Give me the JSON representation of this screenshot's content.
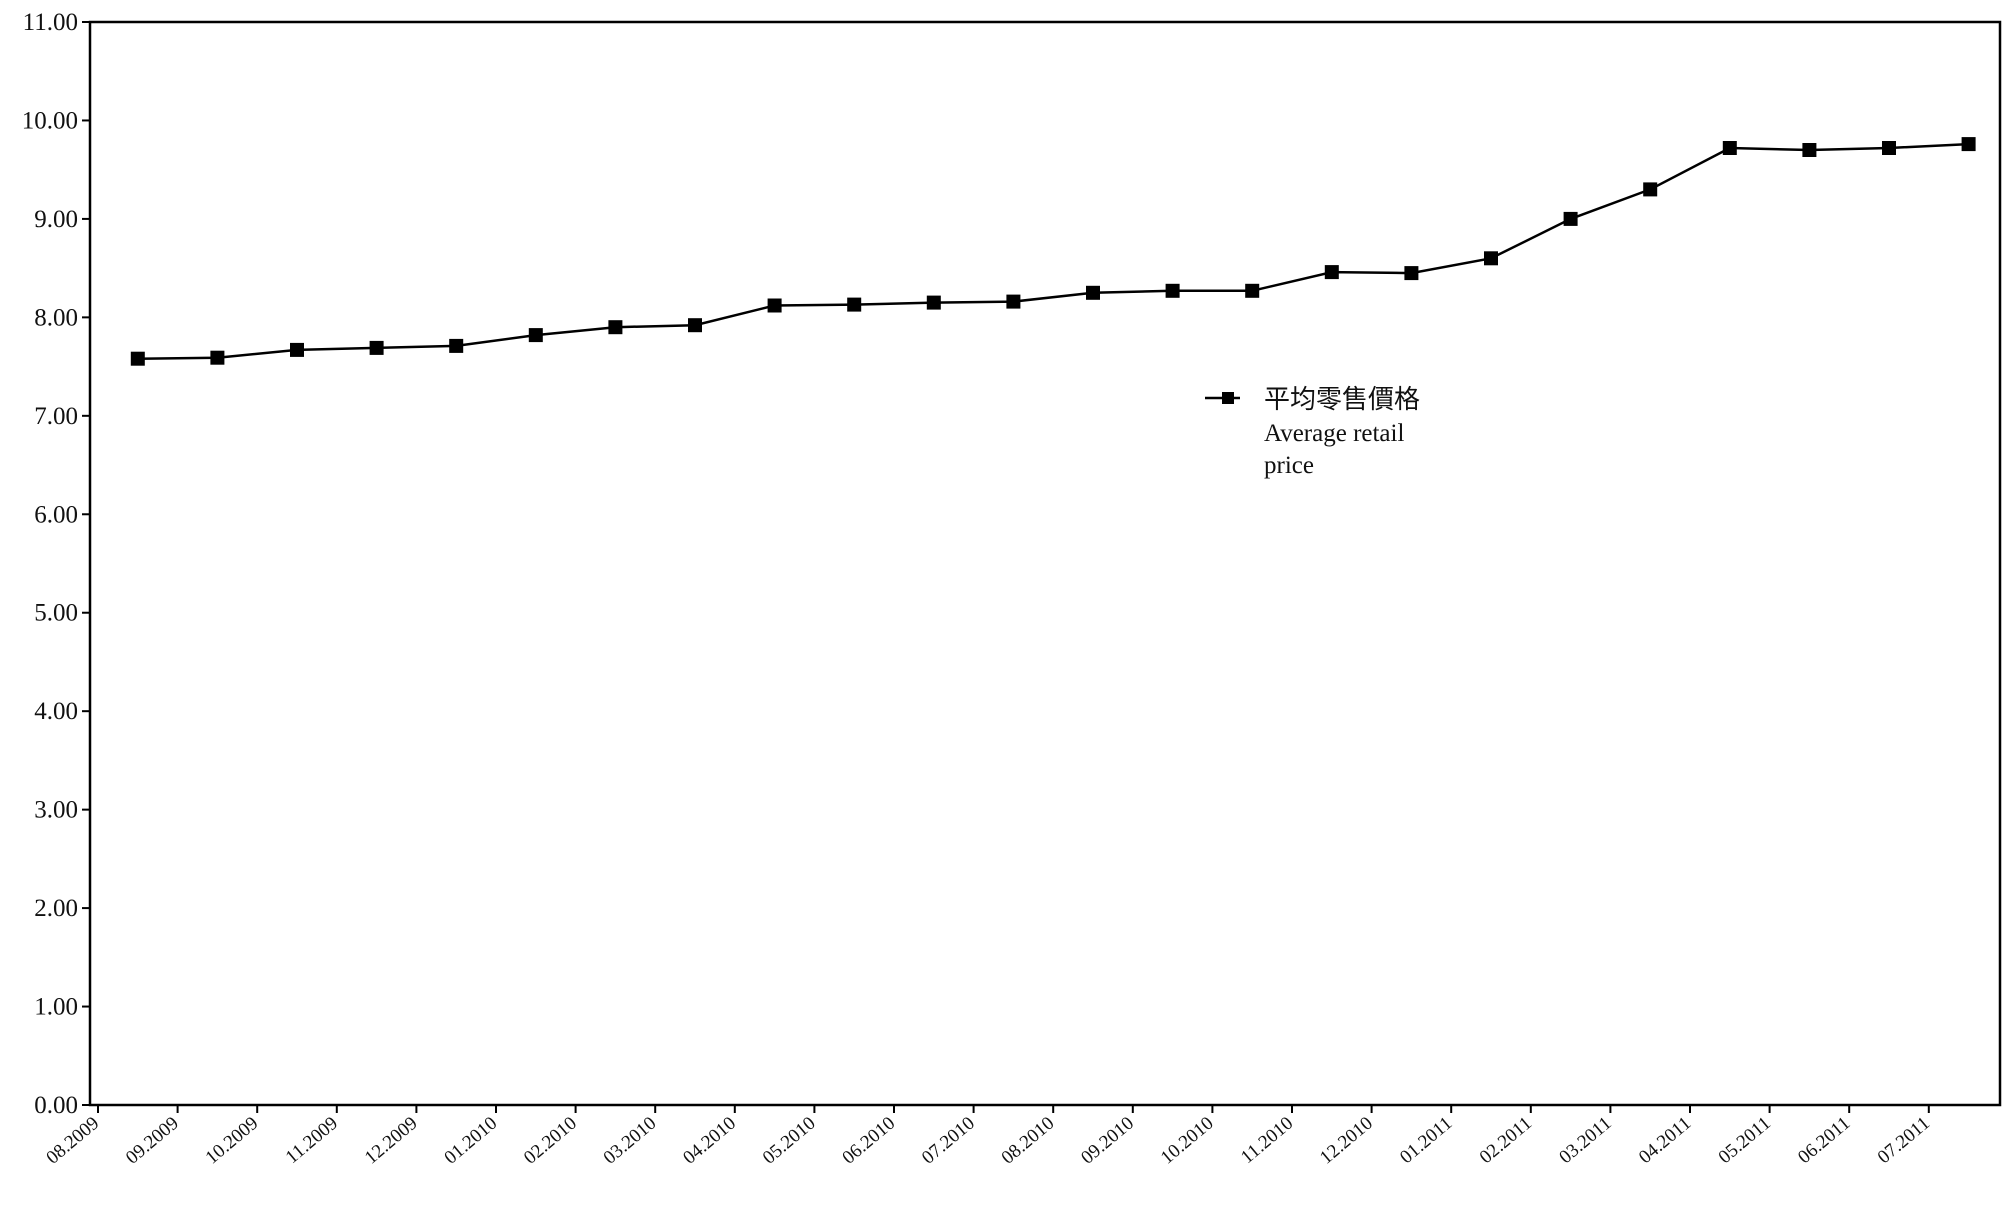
{
  "chart_data": {
    "type": "line",
    "title": "",
    "xlabel": "",
    "ylabel": "",
    "ylim": [
      0,
      11
    ],
    "yticks": [
      "0.00",
      "1.00",
      "2.00",
      "3.00",
      "4.00",
      "5.00",
      "6.00",
      "7.00",
      "8.00",
      "9.00",
      "10.00",
      "11.00"
    ],
    "grid": false,
    "legend_position": "center-right",
    "categories": [
      "08.2009",
      "09.2009",
      "10.2009",
      "11.2009",
      "12.2009",
      "01.2010",
      "02.2010",
      "03.2010",
      "04.2010",
      "05.2010",
      "06.2010",
      "07.2010",
      "08.2010",
      "09.2010",
      "10.2010",
      "11.2010",
      "12.2010",
      "01.2011",
      "02.2011",
      "03.2011",
      "04.2011",
      "05.2011",
      "06.2011",
      "07.2011"
    ],
    "series": [
      {
        "name_zh": "平均零售價格",
        "name_en_line1": "Average retail",
        "name_en_line2": "price",
        "color": "#000000",
        "marker": "square",
        "values": [
          7.58,
          7.59,
          7.67,
          7.69,
          7.71,
          7.82,
          7.9,
          7.92,
          8.12,
          8.13,
          8.15,
          8.16,
          8.25,
          8.27,
          8.27,
          8.46,
          8.45,
          8.6,
          9.0,
          9.3,
          9.72,
          9.7,
          9.72,
          9.76
        ]
      }
    ]
  }
}
